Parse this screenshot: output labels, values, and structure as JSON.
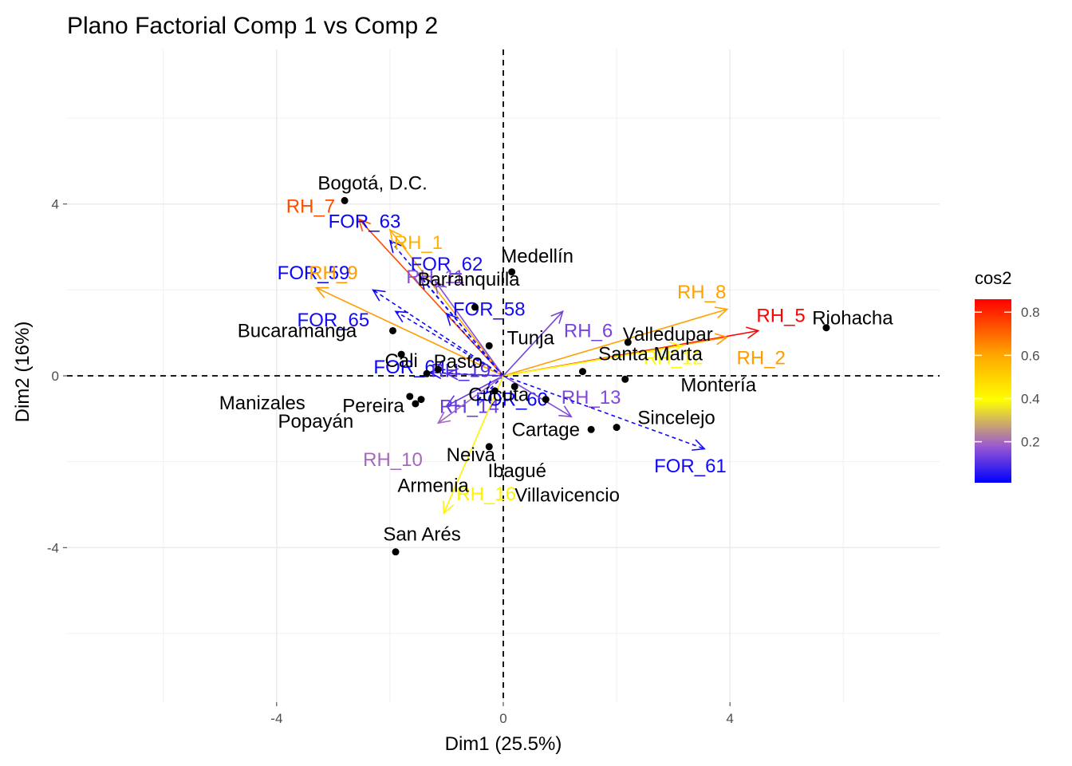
{
  "chart_data": {
    "type": "scatter",
    "title": "Plano Factorial Comp 1 vs Comp 2",
    "xlabel": "Dim1 (25.5%)",
    "ylabel": "Dim2 (16%)",
    "xlim": [
      -7.7,
      7.7
    ],
    "ylim": [
      -7.6,
      7.6
    ],
    "x_ticks": [
      -4,
      0,
      4
    ],
    "y_ticks": [
      -4,
      0,
      4
    ],
    "grid": true,
    "reference_lines": "dashed lines at x=0 and y=0",
    "legend": {
      "title": "cos2",
      "position": "right",
      "gradient": [
        "#0000FF",
        "#9B59D0",
        "#FFFF00",
        "#FFA500",
        "#FF0000"
      ],
      "range": [
        0.01,
        0.86
      ],
      "ticks": [
        0.2,
        0.4,
        0.6,
        0.8
      ]
    },
    "individuals": [
      {
        "name": "Bogotá, D.C.",
        "x": -2.8,
        "y": 4.08
      },
      {
        "name": "Medellín",
        "x": 0.15,
        "y": 2.42
      },
      {
        "name": "Barranquilla",
        "x": -0.5,
        "y": 1.6
      },
      {
        "name": "Bucaramanga",
        "x": -1.95,
        "y": 1.05
      },
      {
        "name": "Cali",
        "x": -1.8,
        "y": 0.5
      },
      {
        "name": "Tunja",
        "x": -0.25,
        "y": 0.7
      },
      {
        "name": "Pasto",
        "x": -1.15,
        "y": 0.15
      },
      {
        "name": "Manizales",
        "x": -1.65,
        "y": -0.48
      },
      {
        "name": "Pereira",
        "x": -1.45,
        "y": -0.55
      },
      {
        "name": "Popayán",
        "x": -1.55,
        "y": -0.65
      },
      {
        "name": "Neiva",
        "x": -0.15,
        "y": -0.35
      },
      {
        "name": "Armenia",
        "x": -1.35,
        "y": 0.05
      },
      {
        "name": "Ibagué",
        "x": -0.25,
        "y": -1.65
      },
      {
        "name": "San Arés",
        "x": -1.9,
        "y": -4.1
      },
      {
        "name": "Cúcuta",
        "x": 0.2,
        "y": -0.25
      },
      {
        "name": "Cartage",
        "x": 0.75,
        "y": -0.55
      },
      {
        "name": "Santa Marta",
        "x": 1.4,
        "y": 0.1
      },
      {
        "name": "Valledupar",
        "x": 2.2,
        "y": 0.78
      },
      {
        "name": "Montería",
        "x": 2.15,
        "y": -0.08
      },
      {
        "name": "Sincelejo",
        "x": 2.0,
        "y": -1.2
      },
      {
        "name": "Villavicencio",
        "x": 1.55,
        "y": -1.25
      },
      {
        "name": "Riohacha",
        "x": 5.7,
        "y": 1.12
      }
    ],
    "variables": [
      {
        "name": "RH_7",
        "x": -2.55,
        "y": 3.65,
        "cos2": 0.74,
        "label_x": -3.4,
        "label_y": 3.95
      },
      {
        "name": "FOR_63",
        "x": -2.0,
        "y": 3.15,
        "cos2": 0.02,
        "label_x": -2.45,
        "label_y": 3.6
      },
      {
        "name": "RH_1",
        "x": -2.0,
        "y": 3.4,
        "cos2": 0.58,
        "label_x": -1.5,
        "label_y": 3.1
      },
      {
        "name": "FOR_62",
        "x": -1.45,
        "y": 2.3,
        "cos2": 0.03,
        "label_x": -1.0,
        "label_y": 2.6
      },
      {
        "name": "RH_11",
        "x": -1.2,
        "y": 2.2,
        "cos2": 0.16,
        "label_x": -1.2,
        "label_y": 2.3
      },
      {
        "name": "FOR_59",
        "x": -2.3,
        "y": 2.0,
        "cos2": 0.02,
        "label_x": -3.35,
        "label_y": 2.4
      },
      {
        "name": "RH_9",
        "x": -3.3,
        "y": 2.05,
        "cos2": 0.62,
        "label_x": -3.0,
        "label_y": 2.4
      },
      {
        "name": "FOR_58",
        "x": -1.0,
        "y": 1.45,
        "cos2": 0.03,
        "label_x": -0.25,
        "label_y": 1.55
      },
      {
        "name": "FOR_65",
        "x": -1.9,
        "y": 1.5,
        "cos2": 0.03,
        "label_x": -3.0,
        "label_y": 1.3
      },
      {
        "name": "FOR_64",
        "x": -1.3,
        "y": 0.08,
        "cos2": 0.02,
        "label_x": -1.65,
        "label_y": 0.2
      },
      {
        "name": "RH_19",
        "x": -1.0,
        "y": 0.05,
        "cos2": 0.1,
        "label_x": -0.75,
        "label_y": 0.12
      },
      {
        "name": "RH_14",
        "x": -1.0,
        "y": -0.7,
        "cos2": 0.12,
        "label_x": -0.6,
        "label_y": -0.72
      },
      {
        "name": "FOR_60",
        "x": -0.3,
        "y": -0.4,
        "cos2": 0.02,
        "label_x": 0.15,
        "label_y": -0.55
      },
      {
        "name": "RH_10",
        "x": -1.15,
        "y": -1.1,
        "cos2": 0.2,
        "label_x": -1.95,
        "label_y": -1.95
      },
      {
        "name": "RH_16",
        "x": -1.05,
        "y": -3.2,
        "cos2": 0.42,
        "label_x": -0.3,
        "label_y": -2.75
      },
      {
        "name": "RH_6",
        "x": 1.05,
        "y": 1.5,
        "cos2": 0.14,
        "label_x": 1.5,
        "label_y": 1.05
      },
      {
        "name": "RH_8",
        "x": 3.95,
        "y": 1.55,
        "cos2": 0.61,
        "label_x": 3.5,
        "label_y": 1.95
      },
      {
        "name": "RH_5",
        "x": 4.5,
        "y": 1.05,
        "cos2": 0.86,
        "label_x": 4.9,
        "label_y": 1.4
      },
      {
        "name": "RH_2",
        "x": 3.95,
        "y": 0.9,
        "cos2": 0.62,
        "label_x": 4.55,
        "label_y": 0.42
      },
      {
        "name": "RH_12",
        "x": 3.15,
        "y": 0.7,
        "cos2": 0.4,
        "label_x": 3.0,
        "label_y": 0.42
      },
      {
        "name": "RH_13",
        "x": 1.2,
        "y": -0.95,
        "cos2": 0.15,
        "label_x": 1.55,
        "label_y": -0.5
      },
      {
        "name": "FOR_61",
        "x": 3.55,
        "y": -1.7,
        "cos2": 0.03,
        "label_x": 3.3,
        "label_y": -2.1
      }
    ]
  }
}
